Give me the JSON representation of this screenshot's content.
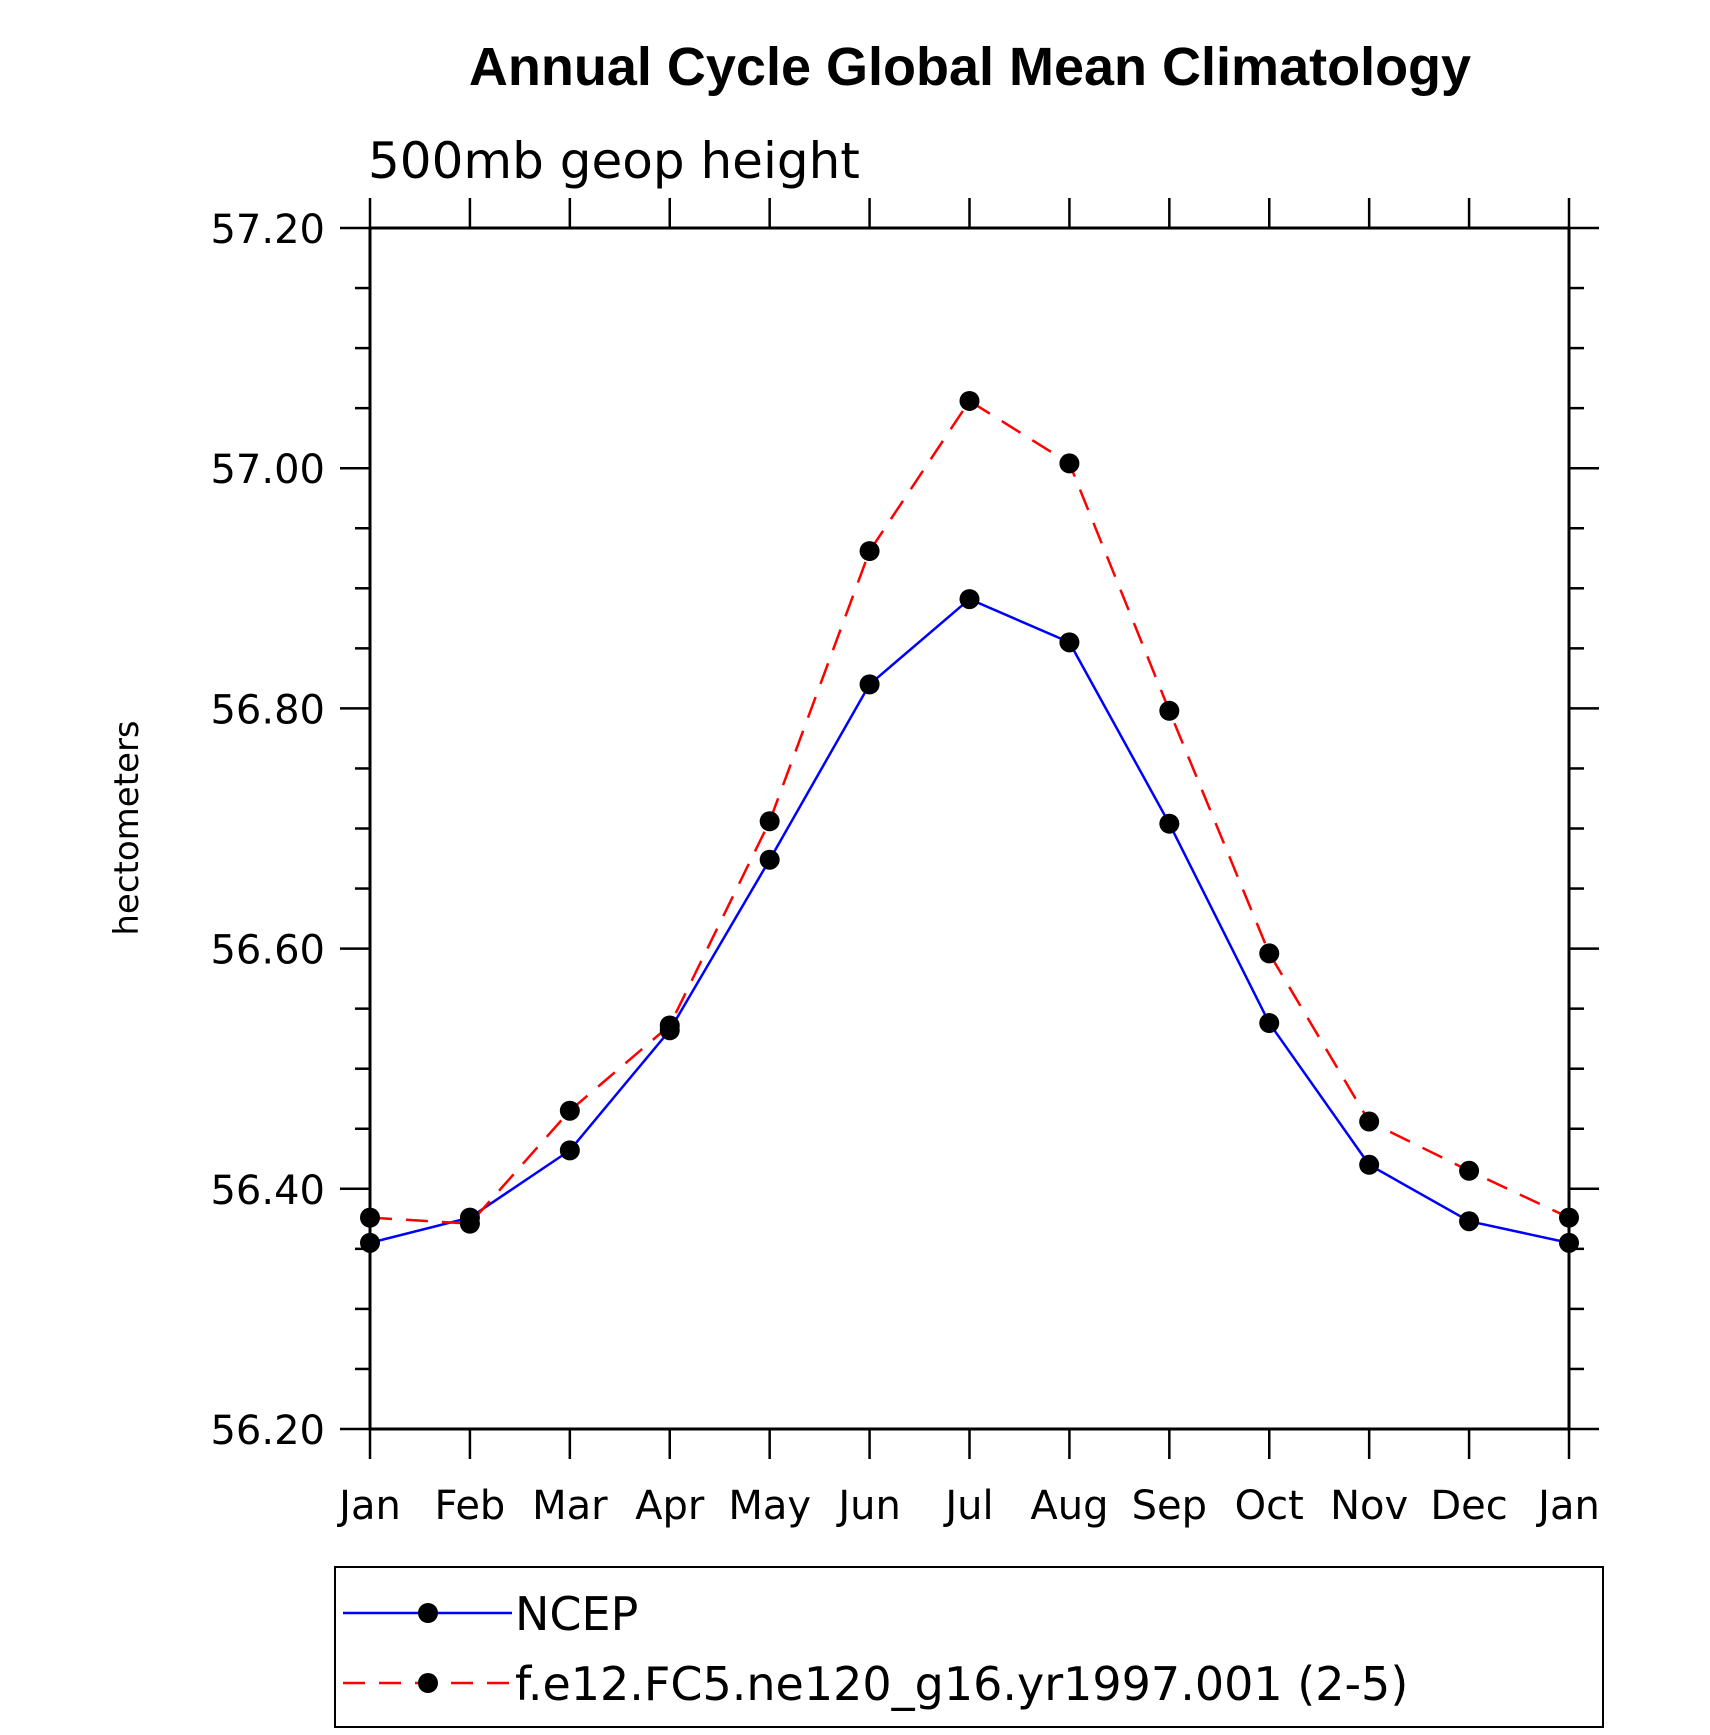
{
  "chart_data": {
    "type": "line",
    "title": "Annual Cycle Global Mean Climatology",
    "subtitle": "500mb geop height",
    "ylabel": "hectometers",
    "xlabel": "",
    "ylim": [
      56.2,
      57.2
    ],
    "ytick_values": [
      56.2,
      56.4,
      56.6,
      56.8,
      57.0,
      57.2
    ],
    "ytick_labels": [
      "56.20",
      "56.40",
      "56.60",
      "56.80",
      "57.00",
      "57.20"
    ],
    "categories": [
      "Jan",
      "Feb",
      "Mar",
      "Apr",
      "May",
      "Jun",
      "Jul",
      "Aug",
      "Sep",
      "Oct",
      "Nov",
      "Dec",
      "Jan"
    ],
    "grid": false,
    "legend_position": "bottom",
    "series": [
      {
        "name": "NCEP",
        "color": "#0000ff",
        "line_style": "solid",
        "marker": "filled-circle",
        "values": [
          56.355,
          56.376,
          56.432,
          56.532,
          56.674,
          56.82,
          56.891,
          56.855,
          56.704,
          56.538,
          56.42,
          56.373,
          56.355
        ]
      },
      {
        "name": "f.e12.FC5.ne120_g16.yr1997.001 (2-5)",
        "color": "#ff0000",
        "line_style": "dashed",
        "marker": "filled-circle",
        "values": [
          56.376,
          56.371,
          56.465,
          56.536,
          56.706,
          56.931,
          57.056,
          57.004,
          56.798,
          56.596,
          56.456,
          56.415,
          56.376
        ]
      }
    ]
  }
}
